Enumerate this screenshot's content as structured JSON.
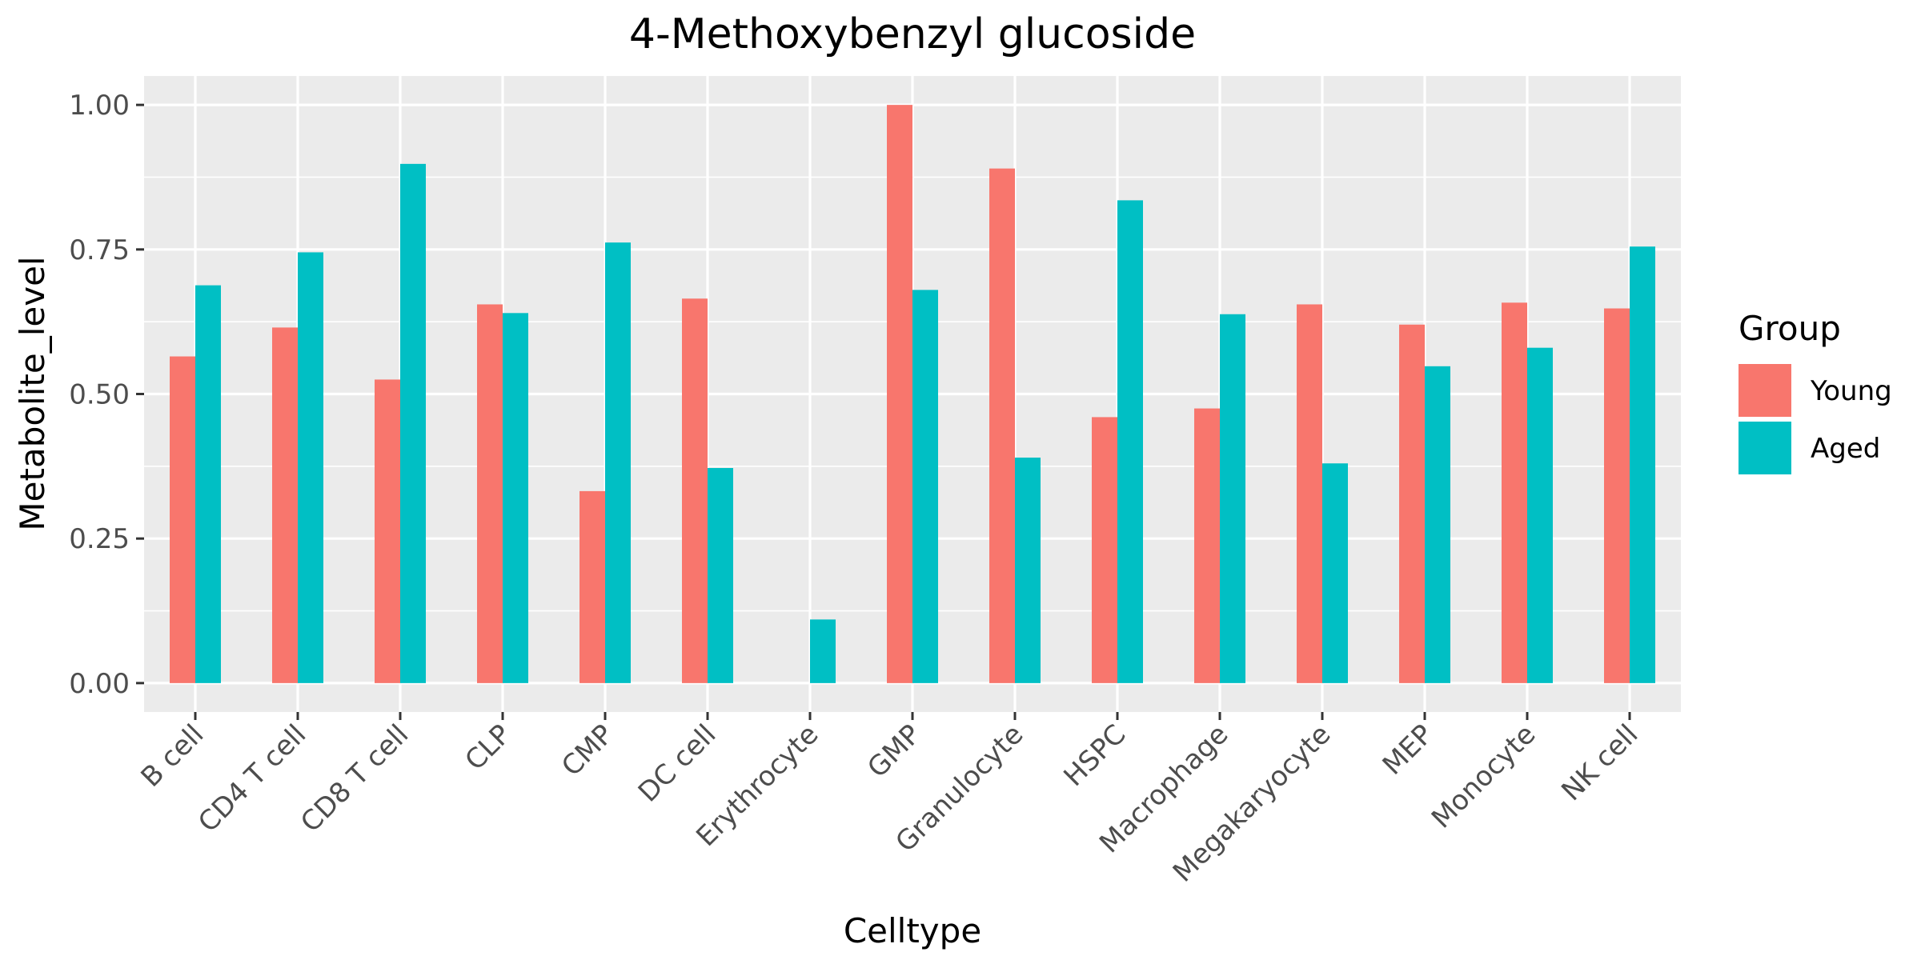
{
  "chart_data": {
    "type": "bar",
    "title": "4-Methoxybenzyl glucoside",
    "xlabel": "Celltype",
    "ylabel": "Metabolite_level",
    "ylim": [
      -0.05,
      1.05
    ],
    "yticks": [
      0.0,
      0.25,
      0.5,
      0.75,
      1.0
    ],
    "ytick_labels": [
      "0.00",
      "0.25",
      "0.50",
      "0.75",
      "1.00"
    ],
    "grid": true,
    "legend": {
      "title": "Group",
      "position": "right"
    },
    "categories": [
      "B cell",
      "CD4 T cell",
      "CD8 T cell",
      "CLP",
      "CMP",
      "DC cell",
      "Erythrocyte",
      "GMP",
      "Granulocyte",
      "HSPC",
      "Macrophage",
      "Megakaryocyte",
      "MEP",
      "Monocyte",
      "NK cell"
    ],
    "series": [
      {
        "name": "Young",
        "color": "#F8766D",
        "values": [
          0.565,
          0.615,
          0.525,
          0.655,
          0.332,
          0.665,
          0.0,
          1.0,
          0.89,
          0.46,
          0.475,
          0.655,
          0.62,
          0.658,
          0.648
        ]
      },
      {
        "name": "Aged",
        "color": "#00BFC4",
        "values": [
          0.688,
          0.745,
          0.898,
          0.64,
          0.762,
          0.372,
          0.11,
          0.68,
          0.39,
          0.835,
          0.638,
          0.38,
          0.548,
          0.58,
          0.755
        ]
      }
    ]
  }
}
